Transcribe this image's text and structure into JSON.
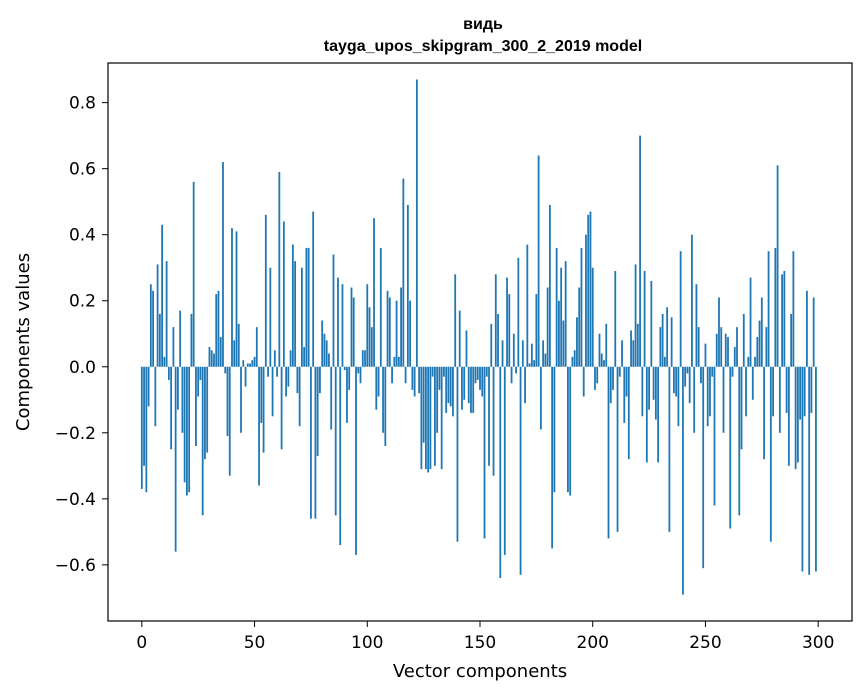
{
  "chart_data": {
    "type": "bar",
    "title": "видь",
    "subtitle": "tayga_upos_skipgram_300_2_2019 model",
    "xlabel": "Vector components",
    "ylabel": "Components values",
    "xlim": [
      -15,
      315
    ],
    "ylim": [
      -0.77,
      0.92
    ],
    "xticks": [
      0,
      50,
      100,
      150,
      200,
      250,
      300
    ],
    "xtick_labels": [
      "0",
      "50",
      "100",
      "150",
      "200",
      "250",
      "300"
    ],
    "yticks": [
      -0.6,
      -0.4,
      -0.2,
      0.0,
      0.2,
      0.4,
      0.6,
      0.8
    ],
    "ytick_labels": [
      "−0.6",
      "−0.4",
      "−0.2",
      "0.0",
      "0.2",
      "0.4",
      "0.6",
      "0.8"
    ],
    "bar_color": "#1f77b4",
    "values": [
      -0.37,
      -0.3,
      -0.38,
      -0.12,
      0.25,
      0.23,
      -0.18,
      0.31,
      0.16,
      0.43,
      0.03,
      0.32,
      -0.04,
      -0.25,
      0.12,
      -0.56,
      -0.13,
      0.17,
      -0.2,
      -0.35,
      -0.39,
      -0.38,
      0.16,
      0.56,
      -0.24,
      -0.09,
      -0.04,
      -0.45,
      -0.28,
      -0.26,
      0.06,
      0.05,
      0.04,
      0.22,
      0.23,
      0.09,
      0.62,
      -0.02,
      -0.21,
      -0.33,
      0.42,
      0.08,
      0.41,
      0.13,
      -0.2,
      0.02,
      -0.06,
      0.01,
      0.01,
      0.02,
      0.03,
      0.12,
      -0.36,
      -0.17,
      -0.26,
      0.46,
      -0.03,
      0.3,
      -0.15,
      0.05,
      -0.03,
      0.59,
      -0.25,
      0.44,
      -0.09,
      -0.06,
      0.05,
      0.37,
      0.32,
      -0.08,
      -0.18,
      0.3,
      0.06,
      0.36,
      0.36,
      -0.46,
      0.47,
      -0.46,
      -0.27,
      -0.08,
      0.14,
      0.1,
      0.08,
      0.04,
      -0.19,
      0.34,
      -0.45,
      0.27,
      -0.54,
      0.25,
      -0.01,
      -0.17,
      -0.07,
      0.24,
      0.21,
      -0.57,
      -0.02,
      -0.05,
      0.05,
      0.05,
      0.25,
      0.18,
      0.12,
      0.45,
      -0.13,
      -0.09,
      0.36,
      -0.2,
      -0.24,
      0.23,
      0.21,
      -0.05,
      0.03,
      0.2,
      0.03,
      0.24,
      0.57,
      -0.05,
      0.49,
      0.2,
      -0.07,
      -0.09,
      0.87,
      -0.08,
      -0.31,
      -0.23,
      -0.31,
      -0.32,
      -0.31,
      -0.03,
      -0.3,
      -0.2,
      -0.07,
      -0.31,
      -0.03,
      -0.14,
      -0.11,
      -0.12,
      -0.15,
      0.28,
      -0.53,
      0.17,
      -0.13,
      -0.1,
      0.11,
      -0.11,
      -0.14,
      -0.14,
      -0.05,
      -0.04,
      -0.07,
      -0.09,
      -0.52,
      -0.03,
      -0.3,
      0.13,
      -0.33,
      0.28,
      0.16,
      -0.64,
      0.08,
      -0.57,
      0.27,
      0.22,
      -0.05,
      0.1,
      -0.02,
      0.33,
      -0.63,
      0.08,
      -0.11,
      0.37,
      0.01,
      0.07,
      0.02,
      0.22,
      0.64,
      -0.19,
      0.08,
      0.04,
      0.24,
      0.49,
      -0.55,
      -0.38,
      0.36,
      0.2,
      0.3,
      0.14,
      0.32,
      -0.38,
      -0.39,
      0.03,
      0.05,
      0.15,
      0.24,
      0.36,
      -0.09,
      0.4,
      0.46,
      0.47,
      0.3,
      -0.07,
      -0.05,
      0.1,
      0.04,
      0.02,
      0.13,
      -0.52,
      -0.11,
      -0.07,
      0.29,
      -0.5,
      -0.03,
      0.08,
      -0.17,
      -0.09,
      -0.28,
      0.11,
      0.08,
      0.31,
      0.13,
      0.7,
      -0.15,
      0.29,
      -0.29,
      -0.13,
      0.26,
      -0.1,
      -0.16,
      -0.29,
      0.12,
      0.16,
      0.03,
      0.18,
      -0.5,
      0.15,
      -0.08,
      -0.09,
      -0.18,
      0.35,
      -0.69,
      -0.06,
      -0.02,
      -0.11,
      0.4,
      -0.2,
      0.25,
      0.12,
      -0.05,
      -0.61,
      0.07,
      -0.18,
      -0.15,
      -0.03,
      -0.42,
      0.1,
      0.21,
      0.12,
      -0.2,
      0.1,
      0.09,
      -0.49,
      -0.03,
      0.06,
      0.12,
      -0.45,
      -0.25,
      0.16,
      -0.15,
      0.03,
      0.27,
      -0.1,
      0.03,
      0.09,
      0.14,
      0.21,
      -0.28,
      0.12,
      0.35,
      -0.53,
      -0.15,
      0.36,
      0.61,
      -0.2,
      0.28,
      0.29,
      -0.14,
      -0.3,
      0.16,
      0.35,
      -0.31,
      -0.29,
      -0.16,
      -0.62,
      -0.15,
      0.23,
      -0.63,
      -0.14,
      0.21,
      -0.62
    ]
  }
}
